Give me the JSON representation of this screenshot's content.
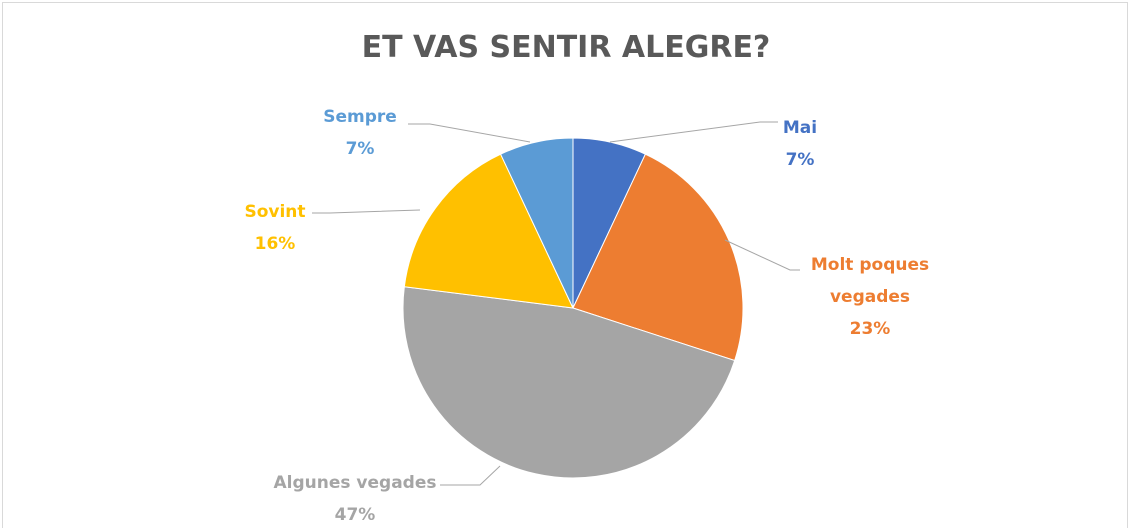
{
  "chart_data": {
    "type": "pie",
    "title": "ET VAS SENTIR ALEGRE?",
    "categories": [
      "Mai",
      "Molt poques vegades",
      "Algunes vegades",
      "Sovint",
      "Sempre"
    ],
    "values": [
      7,
      23,
      47,
      16,
      7
    ],
    "value_labels": [
      "7%",
      "23%",
      "47%",
      "16%",
      "7%"
    ],
    "colors": [
      "#4472c4",
      "#ed7d31",
      "#a5a5a5",
      "#ffc000",
      "#5b9bd5"
    ]
  }
}
